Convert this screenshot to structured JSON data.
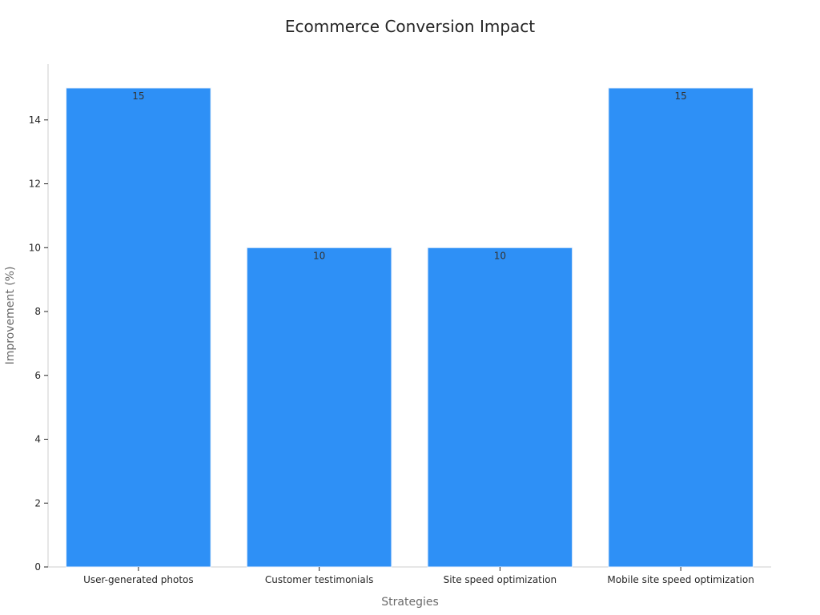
{
  "chart_data": {
    "type": "bar",
    "title": "Ecommerce Conversion Impact",
    "xlabel": "Strategies",
    "ylabel": "Improvement (%)",
    "categories": [
      "User-generated photos",
      "Customer testimonials",
      "Site speed optimization",
      "Mobile site speed optimization"
    ],
    "values": [
      15,
      10,
      10,
      15
    ],
    "ylim": [
      0,
      15.75
    ],
    "yticks": [
      0,
      2,
      4,
      6,
      8,
      10,
      12,
      14
    ],
    "grid": false,
    "legend": "none",
    "bar_color": "#2e90f6",
    "show_data_labels": true
  }
}
